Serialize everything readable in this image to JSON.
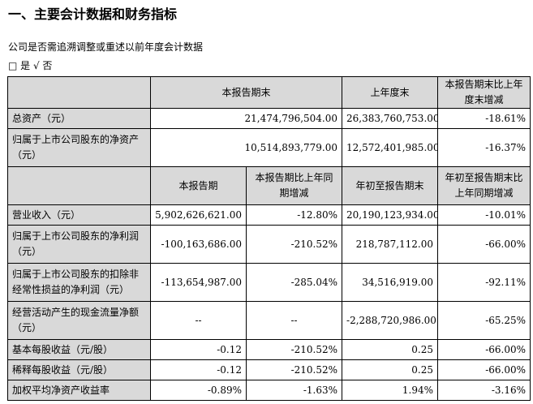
{
  "page": {
    "section_title": "一、主要会计数据和财务指标",
    "question": "公司是否需追溯调整或重述以前年度会计数据",
    "choice": "□ 是 √ 否"
  },
  "table1": {
    "headers": [
      "本报告期末",
      "上年度末",
      "本报告期末比上年度末增减"
    ],
    "rows": [
      {
        "label": "总资产（元）",
        "values": [
          "21,474,796,504.00",
          "26,383,760,753.00",
          "-18.61%"
        ]
      },
      {
        "label": "归属于上市公司股东的净资产（元）",
        "values": [
          "10,514,893,779.00",
          "12,572,401,985.00",
          "-16.37%"
        ]
      }
    ]
  },
  "table2": {
    "headers": [
      "本报告期",
      "本报告期比上年同期增减",
      "年初至报告期末",
      "年初至报告期末比上年同期增减"
    ],
    "rows": [
      {
        "label": "营业收入（元）",
        "values": [
          "5,902,626,621.00",
          "-12.80%",
          "20,190,123,934.00",
          "-10.01%"
        ]
      },
      {
        "label": "归属于上市公司股东的净利润（元）",
        "values": [
          "-100,163,686.00",
          "-210.52%",
          "218,787,112.00",
          "-66.00%"
        ]
      },
      {
        "label": "归属于上市公司股东的扣除非经常性损益的净利润（元）",
        "values": [
          "-113,654,987.00",
          "-285.04%",
          "34,516,919.00",
          "-92.11%"
        ]
      },
      {
        "label": "经营活动产生的现金流量净额（元）",
        "values": [
          "--",
          "--",
          "-2,288,720,986.00",
          "-65.25%"
        ]
      },
      {
        "label": "基本每股收益（元/股）",
        "values": [
          "-0.12",
          "-210.52%",
          "0.25",
          "-66.00%"
        ]
      },
      {
        "label": "稀释每股收益（元/股）",
        "values": [
          "-0.12",
          "-210.52%",
          "0.25",
          "-66.00%"
        ]
      },
      {
        "label": "加权平均净资产收益率",
        "values": [
          "-0.89%",
          "-1.63%",
          "1.94%",
          "-3.16%"
        ]
      }
    ]
  }
}
